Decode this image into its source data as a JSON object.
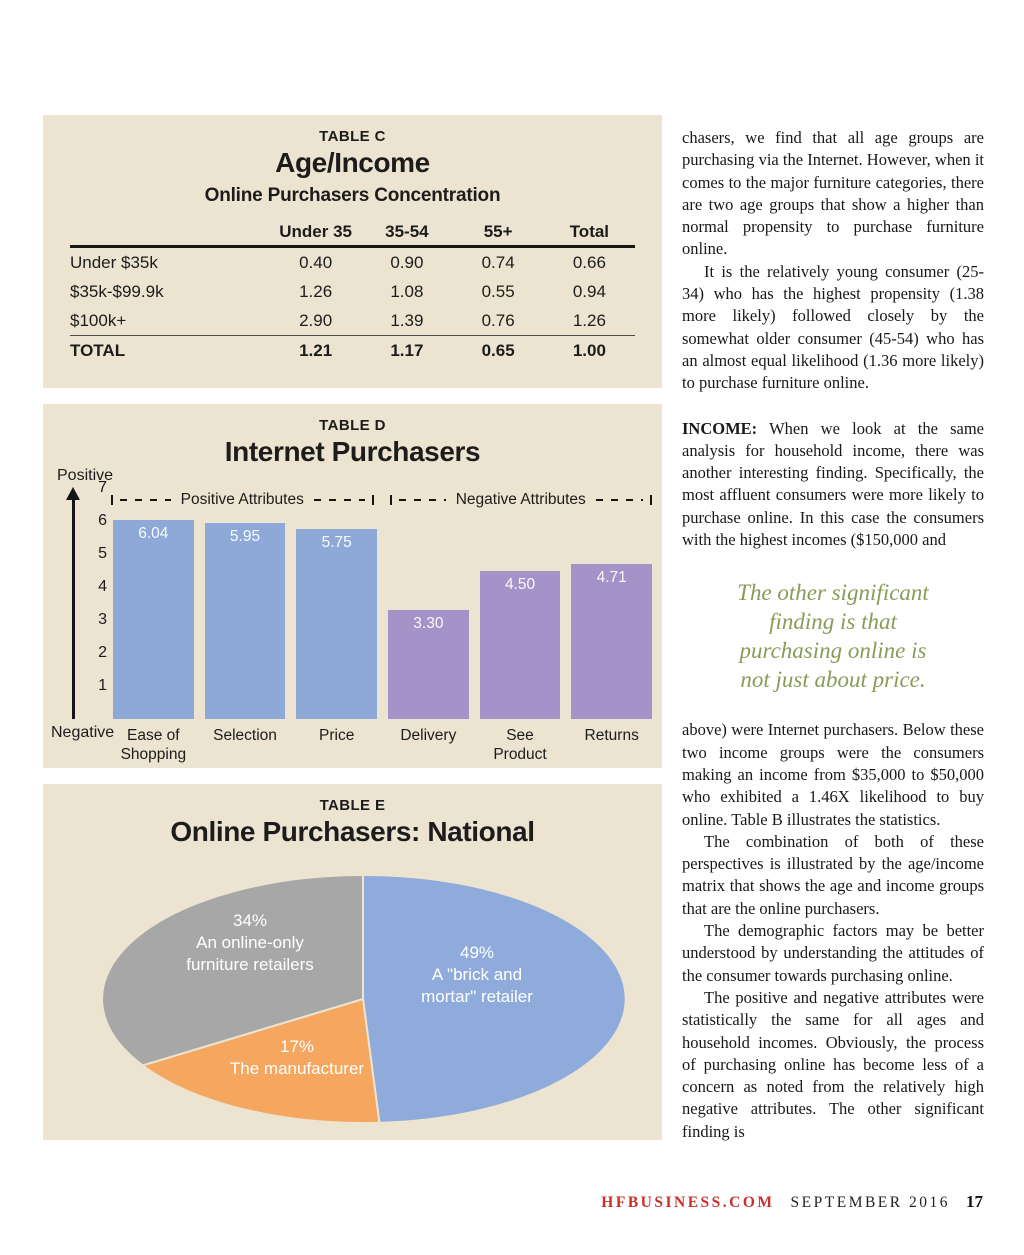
{
  "colors": {
    "panel_background": "#ece4d1",
    "bar_blue": "#8ea9d8",
    "bar_purple": "#a492c8",
    "pie_blue": "#8fabdc",
    "pie_orange": "#f6a75f",
    "pie_gray": "#a7a7a7",
    "pull_quote_green": "#8a9b58",
    "footer_red": "#c8302a",
    "text": "#1c1c1c"
  },
  "chart_data": [
    {
      "id": "table-c",
      "type": "table",
      "label": "TABLE C",
      "title": "Age/Income",
      "subtitle": "Online Purchasers Concentration",
      "columns": [
        "",
        "Under 35",
        "35-54",
        "55+",
        "Total"
      ],
      "rows": [
        {
          "label": "Under $35k",
          "values": [
            "0.40",
            "0.90",
            "0.74",
            "0.66"
          ],
          "bold": false
        },
        {
          "label": "$35k-$99.9k",
          "values": [
            "1.26",
            "1.08",
            "0.55",
            "0.94"
          ],
          "bold": false
        },
        {
          "label": "$100k+",
          "values": [
            "2.90",
            "1.39",
            "0.76",
            "1.26"
          ],
          "bold": false
        },
        {
          "label": "TOTAL",
          "values": [
            "1.21",
            "1.17",
            "0.65",
            "1.00"
          ],
          "bold": true
        }
      ]
    },
    {
      "id": "table-d",
      "type": "bar",
      "label": "TABLE D",
      "title": "Internet Purchasers",
      "ylim": [
        0,
        7
      ],
      "yticks": [
        7,
        6,
        5,
        4,
        3,
        2,
        1
      ],
      "axis_top_label": "Positive",
      "axis_bottom_label": "Negative",
      "grid": false,
      "groups": [
        {
          "label": "Positive Attributes",
          "span": 3
        },
        {
          "label": "Negative Attributes",
          "span": 3
        }
      ],
      "categories": [
        "Ease of\nShopping",
        "Selection",
        "Price",
        "Delivery",
        "See Product",
        "Returns"
      ],
      "values": [
        6.04,
        5.95,
        5.75,
        3.3,
        4.5,
        4.71
      ],
      "value_labels": [
        "6.04",
        "5.95",
        "5.75",
        "3.30",
        "4.50",
        "4.71"
      ],
      "bar_colors": [
        "#8ea9d8",
        "#8ea9d8",
        "#8ea9d8",
        "#a492c8",
        "#a492c8",
        "#a492c8"
      ]
    },
    {
      "id": "table-e",
      "type": "pie",
      "label": "TABLE E",
      "title": "Online Purchasers: National",
      "start": "top",
      "direction": "clockwise",
      "slices": [
        {
          "pct": 49,
          "color": "#8fabdc",
          "label": "49%\nA \"brick and\nmortar\" retailer",
          "label_pos": {
            "x": 434,
            "y": 121
          }
        },
        {
          "pct": 17,
          "color": "#f6a75f",
          "label": "17%\nThe manufacturer",
          "label_pos": {
            "x": 254,
            "y": 204
          }
        },
        {
          "pct": 34,
          "color": "#a7a7a7",
          "label": "34%\nAn online-only\nfurniture retailers",
          "label_pos": {
            "x": 207,
            "y": 89
          }
        }
      ]
    }
  ],
  "article": {
    "before_quote": [
      {
        "indent": false,
        "space_before": false,
        "text": "chasers, we find that all age groups are purchasing via the Internet. However, when it comes to the major furniture categories, there are two age groups that show a higher than normal propensity to purchase furniture online."
      },
      {
        "indent": true,
        "space_before": false,
        "text": "It is the relatively young consumer (25-34) who has the highest propensity (1.38 more likely) followed closely by the somewhat older consumer (45-54) who has an almost equal likelihood (1.36 more likely) to purchase furniture online."
      },
      {
        "indent": false,
        "space_before": true,
        "lead": "INCOME:",
        "text": " When we look at the same analysis for household income, there was another interesting finding. Specifically, the most affluent consumers were more likely to purchase online. In this case the consumers with the highest incomes ($150,000 and"
      }
    ],
    "pull_quote": "The other significant\nfinding is that\npurchasing online is\nnot just about price.",
    "after_quote": [
      {
        "indent": false,
        "space_before": false,
        "text": "above) were Internet purchasers. Below these two income groups were the consumers making an income from $35,000 to $50,000 who exhibited a 1.46X likelihood to buy online. Table B illustrates the statistics."
      },
      {
        "indent": true,
        "space_before": false,
        "text": "The combination of both of these perspectives is illustrated by the age/income matrix that shows the age and income groups that are the online purchasers."
      },
      {
        "indent": true,
        "space_before": false,
        "text": "The demographic factors may be better understood by understanding the attitudes of the consumer towards purchasing online."
      },
      {
        "indent": true,
        "space_before": false,
        "text": "The positive and negative attributes were statistically the same for all ages and household incomes. Obviously, the process of purchasing online has become less of a concern as noted from the relatively high negative attributes. The other significant finding is"
      }
    ]
  },
  "footer": {
    "site": "HFBUSINESS.COM",
    "issue": "SEPTEMBER 2016",
    "page_number": "17"
  }
}
